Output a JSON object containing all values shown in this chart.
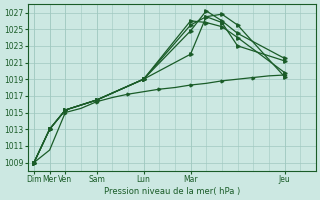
{
  "bg_color": "#cce8e2",
  "grid_color": "#a0c8c0",
  "line_color": "#1a5c28",
  "title": "Pression niveau de la mer( hPa )",
  "ylim": [
    1008,
    1028
  ],
  "yticks": [
    1009,
    1011,
    1013,
    1015,
    1017,
    1019,
    1021,
    1023,
    1025,
    1027
  ],
  "xlabel_days": [
    "Dim",
    "Mer",
    "Ven",
    "Sam",
    "Lun",
    "Mar",
    "Jeu"
  ],
  "xlabel_xpos": [
    0,
    0.5,
    1.0,
    2.0,
    3.5,
    5.0,
    8.0
  ],
  "xmax": 9.0,
  "series": [
    {
      "x": [
        0,
        0.5,
        1.0,
        2.0,
        3.5,
        5.0,
        5.5,
        6.0,
        6.5,
        8.0
      ],
      "y": [
        1009.0,
        1013.0,
        1015.3,
        1016.5,
        1019.0,
        1022.0,
        1026.5,
        1026.8,
        1025.5,
        1019.3
      ]
    },
    {
      "x": [
        0,
        0.5,
        1.0,
        2.0,
        3.5,
        5.0,
        5.5,
        6.0,
        6.5,
        8.0
      ],
      "y": [
        1009.0,
        1013.0,
        1015.3,
        1016.5,
        1019.0,
        1024.8,
        1027.2,
        1026.0,
        1024.5,
        1021.5
      ]
    },
    {
      "x": [
        0,
        0.5,
        1.0,
        2.0,
        3.5,
        5.0,
        5.5,
        6.0,
        6.5,
        8.0
      ],
      "y": [
        1009.0,
        1013.0,
        1015.3,
        1016.5,
        1019.0,
        1025.5,
        1026.5,
        1025.8,
        1023.0,
        1021.2
      ]
    },
    {
      "x": [
        0,
        0.5,
        1.0,
        2.0,
        3.5,
        5.0,
        5.5,
        6.0,
        6.5,
        8.0
      ],
      "y": [
        1009.0,
        1013.0,
        1015.3,
        1016.5,
        1019.0,
        1026.0,
        1025.8,
        1025.3,
        1024.0,
        1019.8
      ]
    },
    {
      "x": [
        0,
        0.5,
        1.0,
        1.5,
        2.0,
        2.5,
        3.0,
        3.5,
        4.0,
        4.5,
        5.0,
        5.5,
        6.0,
        6.5,
        7.0,
        7.5,
        8.0
      ],
      "y": [
        1009.0,
        1010.5,
        1015.0,
        1015.5,
        1016.3,
        1016.8,
        1017.2,
        1017.5,
        1017.8,
        1018.0,
        1018.3,
        1018.5,
        1018.8,
        1019.0,
        1019.2,
        1019.4,
        1019.5
      ]
    }
  ]
}
